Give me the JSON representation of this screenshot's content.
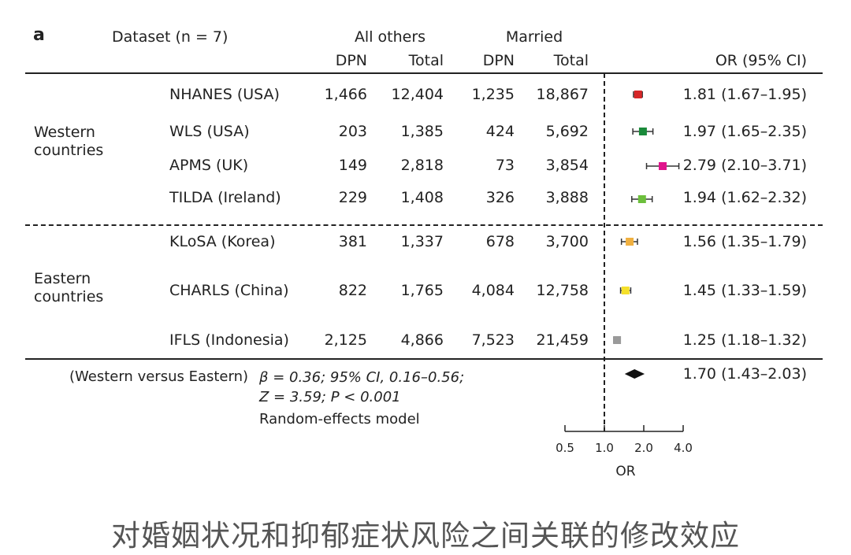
{
  "panel_label": "a",
  "header": {
    "dataset": "Dataset (n = 7)",
    "group1": "All others",
    "group2": "Married",
    "dpn": "DPN",
    "total": "Total",
    "or_ci": "OR (95% CI)"
  },
  "regions": {
    "western": "Western\ncountries",
    "eastern": "Eastern\ncountries"
  },
  "rows": [
    {
      "name": "NHANES (USA)",
      "ao_dpn": "1,466",
      "ao_total": "12,404",
      "m_dpn": "1,235",
      "m_total": "18,867",
      "or_text": "1.81 (1.67–1.95)"
    },
    {
      "name": "WLS (USA)",
      "ao_dpn": "203",
      "ao_total": "1,385",
      "m_dpn": "424",
      "m_total": "5,692",
      "or_text": "1.97 (1.65–2.35)"
    },
    {
      "name": "APMS (UK)",
      "ao_dpn": "149",
      "ao_total": "2,818",
      "m_dpn": "73",
      "m_total": "3,854",
      "or_text": "2.79 (2.10–3.71)"
    },
    {
      "name": "TILDA (Ireland)",
      "ao_dpn": "229",
      "ao_total": "1,408",
      "m_dpn": "326",
      "m_total": "3,888",
      "or_text": "1.94 (1.62–2.32)"
    },
    {
      "name": "KLoSA (Korea)",
      "ao_dpn": "381",
      "ao_total": "1,337",
      "m_dpn": "678",
      "m_total": "3,700",
      "or_text": "1.56 (1.35–1.79)"
    },
    {
      "name": "CHARLS (China)",
      "ao_dpn": "822",
      "ao_total": "1,765",
      "m_dpn": "4,084",
      "m_total": "12,758",
      "or_text": "1.45 (1.33–1.59)"
    },
    {
      "name": "IFLS (Indonesia)",
      "ao_dpn": "2,125",
      "ao_total": "4,866",
      "m_dpn": "7,523",
      "m_total": "21,459",
      "or_text": "1.25 (1.18–1.32)"
    }
  ],
  "pooled": {
    "comparison": "(Western versus Eastern)",
    "stat_line1": "β = 0.36; 95% CI, 0.16–0.56;",
    "stat_line2": "Z = 3.59; P < 0.001",
    "model": "Random-effects model",
    "or_text": "1.70 (1.43–2.03)"
  },
  "caption": "对婚姻状况和抑郁症状风险之间关联的修改效应",
  "chart_data": {
    "type": "forest",
    "xlabel": "OR",
    "x_scale": "log",
    "x_ticks": [
      "0.5",
      "1.0",
      "2.0",
      "4.0"
    ],
    "x_tick_values": [
      0.5,
      1.0,
      2.0,
      4.0
    ],
    "reference_line": 1.0,
    "studies": [
      {
        "name": "NHANES (USA)",
        "or": 1.81,
        "lo": 1.67,
        "hi": 1.95,
        "color": "#d62728"
      },
      {
        "name": "WLS (USA)",
        "or": 1.97,
        "lo": 1.65,
        "hi": 2.35,
        "color": "#1a8a3a"
      },
      {
        "name": "APMS (UK)",
        "or": 2.79,
        "lo": 2.1,
        "hi": 3.71,
        "color": "#e0148c"
      },
      {
        "name": "TILDA (Ireland)",
        "or": 1.94,
        "lo": 1.62,
        "hi": 2.32,
        "color": "#6cbf3c"
      },
      {
        "name": "KLoSA (Korea)",
        "or": 1.56,
        "lo": 1.35,
        "hi": 1.79,
        "color": "#f0b040"
      },
      {
        "name": "CHARLS (China)",
        "or": 1.45,
        "lo": 1.33,
        "hi": 1.59,
        "color": "#f5e02a"
      },
      {
        "name": "IFLS (Indonesia)",
        "or": 1.25,
        "lo": 1.18,
        "hi": 1.32,
        "color": "#9a9a9a"
      }
    ],
    "pooled": {
      "or": 1.7,
      "lo": 1.43,
      "hi": 2.03,
      "color": "#111111"
    }
  }
}
